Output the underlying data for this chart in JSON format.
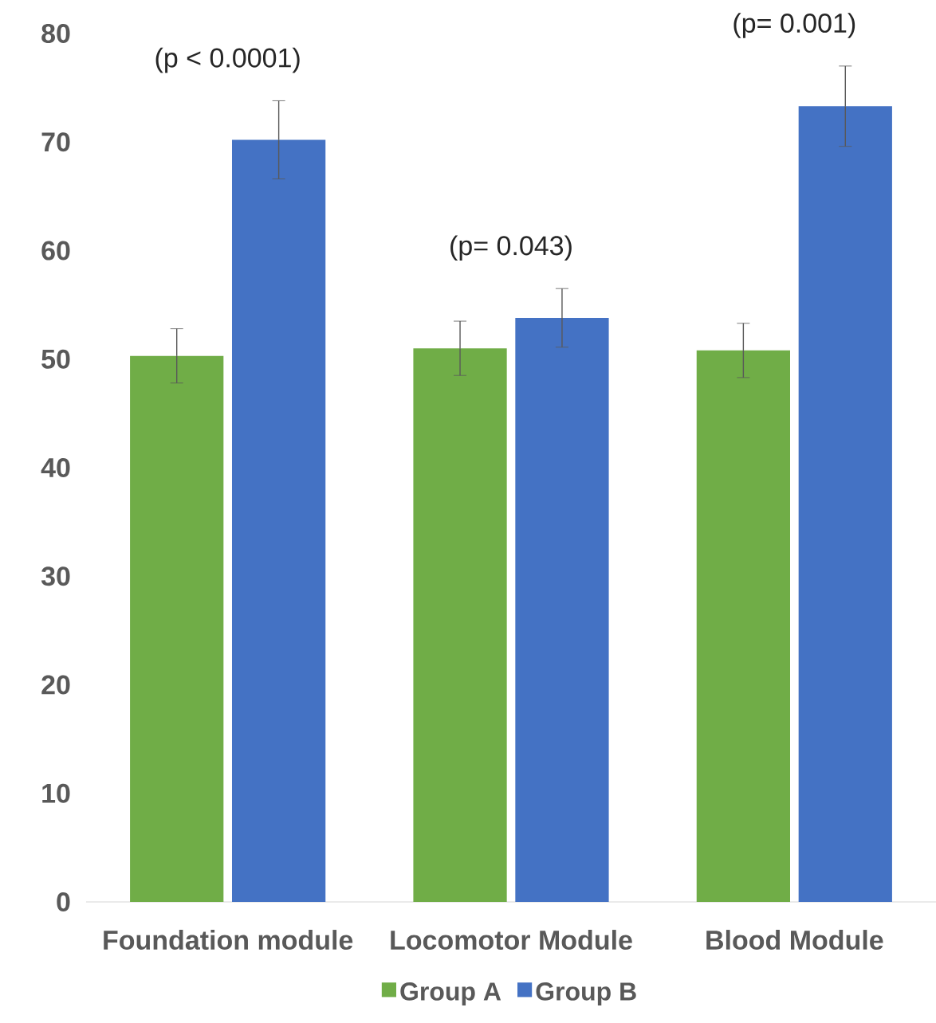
{
  "chart_data": {
    "type": "bar",
    "categories": [
      "Foundation module",
      "Locomotor Module",
      "Blood Module"
    ],
    "series": [
      {
        "name": "Group A",
        "color": "#70ad47",
        "values": [
          50.3,
          51.0,
          50.8
        ],
        "errors": [
          2.5,
          2.5,
          2.5
        ]
      },
      {
        "name": "Group B",
        "color": "#4472c4",
        "values": [
          70.2,
          53.8,
          73.3
        ],
        "errors": [
          3.6,
          2.7,
          3.7
        ]
      }
    ],
    "ylim": [
      0,
      80
    ],
    "yticks": [
      0,
      10,
      20,
      30,
      40,
      50,
      60,
      70,
      80
    ],
    "annotations": [
      "(p < 0.0001)",
      "(p= 0.043)",
      "(p= 0.001)"
    ],
    "legend": "bottom"
  }
}
